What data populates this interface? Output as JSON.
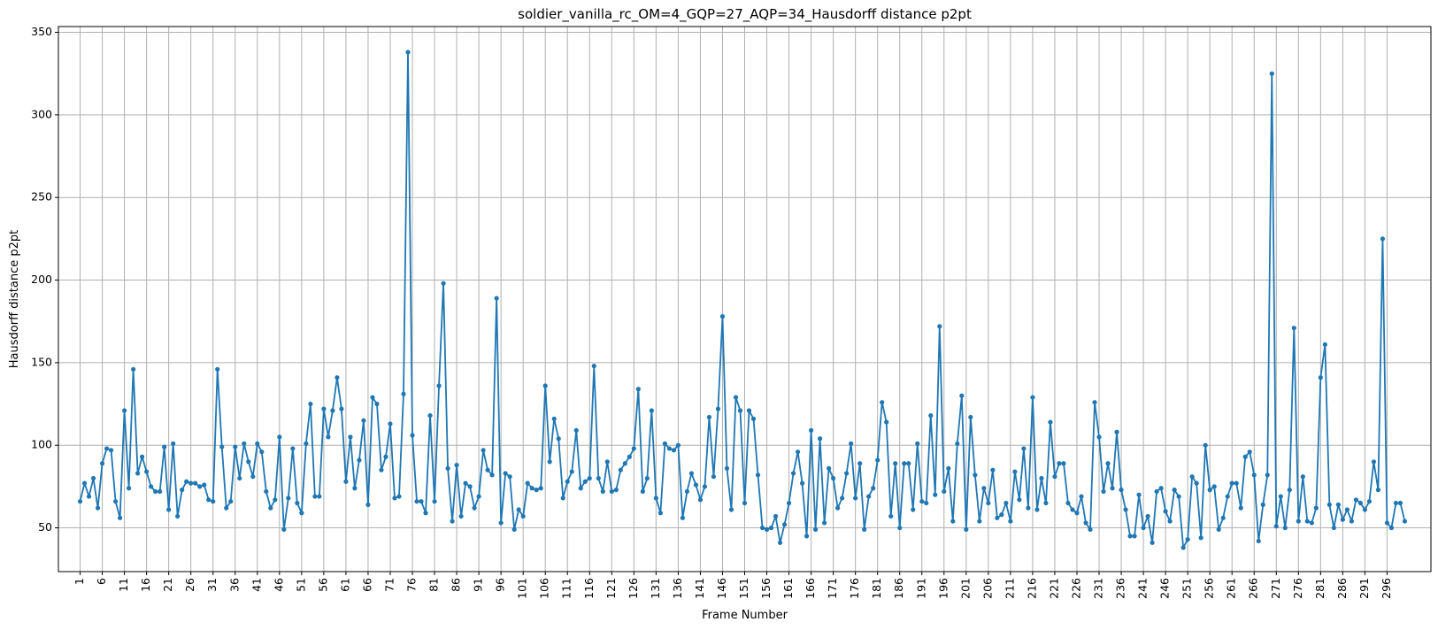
{
  "chart_data": {
    "type": "line",
    "title": "soldier_vanilla_rc_OM=4_GQP=27_AQP=34_Hausdorff distance p2pt",
    "xlabel": "Frame Number",
    "ylabel": "Hausdorff distance p2pt",
    "xlim": [
      -3.9,
      305.9
    ],
    "ylim": [
      23.5,
      353.5
    ],
    "grid": true,
    "x_ticks": [
      1,
      6,
      11,
      16,
      21,
      26,
      31,
      36,
      41,
      46,
      51,
      56,
      61,
      66,
      71,
      76,
      81,
      86,
      91,
      96,
      101,
      106,
      111,
      116,
      121,
      126,
      131,
      136,
      141,
      146,
      151,
      156,
      161,
      166,
      171,
      176,
      181,
      186,
      191,
      196,
      201,
      206,
      211,
      216,
      221,
      226,
      231,
      236,
      241,
      246,
      251,
      256,
      261,
      266,
      271,
      276,
      281,
      286,
      291,
      296
    ],
    "y_ticks": [
      50,
      100,
      150,
      200,
      250,
      300,
      350
    ],
    "colors": {
      "series": "#1f77b4",
      "grid": "#b0b0b0"
    },
    "x_start": 1,
    "series": [
      {
        "marker": "circle",
        "values": [
          66,
          77,
          69,
          80,
          62,
          89,
          98,
          97,
          66,
          56,
          121,
          74,
          146,
          83,
          93,
          84,
          75,
          72,
          72,
          99,
          61,
          101,
          57,
          73,
          78,
          77,
          77,
          75,
          76,
          67,
          66,
          146,
          99,
          62,
          66,
          99,
          80,
          101,
          90,
          81,
          101,
          96,
          72,
          62,
          67,
          105,
          49,
          68,
          98,
          65,
          59,
          101,
          125,
          69,
          69,
          122,
          105,
          121,
          141,
          122,
          78,
          105,
          74,
          91,
          115,
          64,
          129,
          125,
          85,
          93,
          113,
          68,
          69,
          131,
          338,
          106,
          66,
          66,
          59,
          118,
          66,
          136,
          198,
          86,
          54,
          88,
          57,
          77,
          75,
          62,
          69,
          97,
          85,
          82,
          189,
          53,
          83,
          81,
          49,
          61,
          57,
          77,
          74,
          73,
          74,
          136,
          90,
          116,
          104,
          68,
          78,
          84,
          109,
          74,
          78,
          80,
          148,
          80,
          72,
          90,
          72,
          73,
          85,
          89,
          93,
          98,
          134,
          72,
          80,
          121,
          68,
          59,
          101,
          98,
          97,
          100,
          56,
          72,
          83,
          76,
          67,
          75,
          117,
          81,
          122,
          178,
          86,
          61,
          129,
          121,
          65,
          121,
          116,
          82,
          50,
          49,
          50,
          57,
          41,
          52,
          65,
          83,
          96,
          77,
          45,
          109,
          49,
          104,
          53,
          86,
          80,
          62,
          68,
          83,
          101,
          68,
          89,
          49,
          69,
          74,
          91,
          126,
          114,
          57,
          89,
          50,
          89,
          89,
          61,
          101,
          66,
          65,
          118,
          70,
          172,
          72,
          86,
          54,
          101,
          130,
          49,
          117,
          82,
          54,
          74,
          65,
          85,
          56,
          58,
          65,
          54,
          84,
          67,
          98,
          62,
          129,
          61,
          80,
          65,
          114,
          81,
          89,
          89,
          65,
          61,
          59,
          69,
          53,
          49,
          126,
          105,
          72,
          89,
          74,
          108,
          73,
          61,
          45,
          45,
          70,
          50,
          57,
          41,
          72,
          74,
          60,
          54,
          73,
          69,
          38,
          43,
          81,
          77,
          44,
          100,
          73,
          75,
          49,
          56,
          69,
          77,
          77,
          62,
          93,
          96,
          82,
          42,
          64,
          82,
          325,
          51,
          69,
          50,
          73,
          171,
          54,
          81,
          54,
          53,
          62,
          141,
          161,
          64,
          50,
          64,
          55,
          61,
          54,
          67,
          65,
          61,
          66,
          90,
          73,
          225,
          53,
          50,
          65,
          65,
          54
        ]
      }
    ]
  }
}
